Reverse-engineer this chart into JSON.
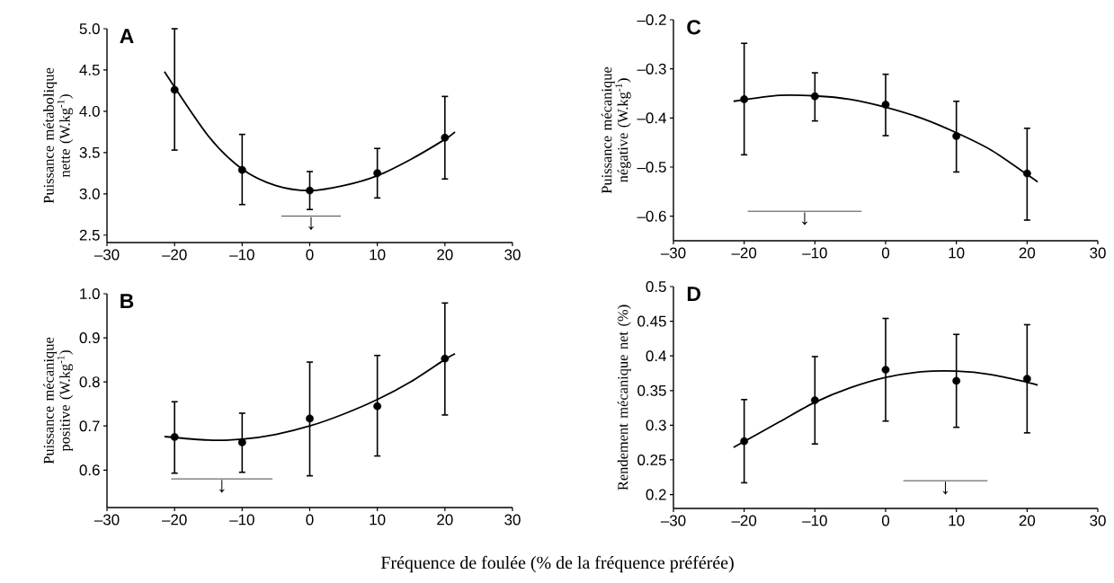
{
  "chart_data": [
    {
      "type": "scatter",
      "title": "A",
      "ylabel": "Puissance métabolique nette (W.kg$^{-1}$)",
      "xlim": [
        -30,
        30
      ],
      "ylim": [
        2.41,
        5.0
      ],
      "xticks": [
        {
          "value": -30,
          "label": "–30"
        },
        {
          "value": -20,
          "label": "–20"
        },
        {
          "value": -10,
          "label": "–10"
        },
        0,
        10,
        20,
        30
      ],
      "yticks": [
        2.5,
        {
          "value": 3,
          "label": "3.0"
        },
        3.5,
        {
          "value": 4,
          "label": "4.0"
        },
        4.5,
        {
          "value": 5,
          "label": "5.0"
        }
      ],
      "series": [
        {
          "type": "scatter",
          "marker": "circle",
          "color": "#000000",
          "x": [
            -20,
            -10,
            0,
            10,
            20
          ],
          "values": [
            4.26,
            3.29,
            3.04,
            3.25,
            3.68
          ],
          "errors": [
            [
              3.53,
              5.0
            ],
            [
              2.87,
              3.72
            ],
            [
              2.81,
              3.27
            ],
            [
              2.95,
              3.55
            ],
            [
              3.18,
              4.18
            ]
          ]
        },
        {
          "type": "line",
          "color": "#000000",
          "x": [
            -21.5,
            -15,
            -10,
            -5,
            0,
            5,
            10,
            15,
            20,
            21.5
          ],
          "values": [
            4.48,
            3.7,
            3.3,
            3.1,
            3.04,
            3.1,
            3.22,
            3.42,
            3.66,
            3.75
          ]
        },
        {
          "type": "line",
          "color": "#333333",
          "x": [
            -4.2,
            4.6
          ],
          "values": [
            2.73,
            2.73
          ]
        }
      ],
      "annotations": [
        "↓"
      ]
    },
    {
      "type": "scatter",
      "title": "C",
      "ylabel": "Puissance mécanique négative (W.kg$^{-1}$)",
      "xlim": [
        -30,
        30
      ],
      "ylim": [
        -0.65,
        -0.2
      ],
      "xticks": [
        {
          "value": -30,
          "label": "–30"
        },
        {
          "value": -20,
          "label": "–20"
        },
        {
          "value": -10,
          "label": "–10"
        },
        0,
        10,
        20,
        30
      ],
      "yticks": [
        {
          "value": -0.6,
          "label": "–0.6"
        },
        {
          "value": -0.5,
          "label": "–0.5"
        },
        {
          "value": -0.4,
          "label": "–0.4"
        },
        {
          "value": -0.3,
          "label": "–0.3"
        },
        {
          "value": -0.2,
          "label": "–0.2"
        }
      ],
      "series": [
        {
          "type": "scatter",
          "marker": "circle",
          "color": "#000000",
          "x": [
            -20,
            -10,
            0,
            10,
            20
          ],
          "values": [
            -0.362,
            -0.356,
            -0.373,
            -0.437,
            -0.513
          ],
          "errors": [
            [
              -0.475,
              -0.248
            ],
            [
              -0.406,
              -0.308
            ],
            [
              -0.436,
              -0.311
            ],
            [
              -0.51,
              -0.366
            ],
            [
              -0.608,
              -0.421
            ]
          ]
        },
        {
          "type": "line",
          "color": "#000000",
          "x": [
            -21.5,
            -15,
            -10,
            -5,
            0,
            5,
            10,
            15,
            20,
            21.5
          ],
          "values": [
            -0.366,
            -0.354,
            -0.355,
            -0.362,
            -0.378,
            -0.4,
            -0.43,
            -0.466,
            -0.515,
            -0.53
          ]
        },
        {
          "type": "line",
          "color": "#333333",
          "x": [
            -19.5,
            -3.4
          ],
          "values": [
            -0.59,
            -0.59
          ]
        }
      ],
      "annotations": [
        "↓"
      ]
    },
    {
      "type": "scatter",
      "title": "B",
      "ylabel": "Puissance mécanique positive (W.kg$^{-1}$)",
      "xlim": [
        -30,
        30
      ],
      "ylim": [
        0.515,
        1.0
      ],
      "xticks": [
        {
          "value": -30,
          "label": "–30"
        },
        {
          "value": -20,
          "label": "–20"
        },
        {
          "value": -10,
          "label": "–10"
        },
        0,
        10,
        20,
        30
      ],
      "yticks": [
        0.6,
        0.7,
        0.8,
        0.9,
        {
          "value": 1,
          "label": "1.0"
        }
      ],
      "series": [
        {
          "type": "scatter",
          "marker": "circle",
          "color": "#000000",
          "x": [
            -20,
            -10,
            0,
            10,
            20
          ],
          "values": [
            0.675,
            0.663,
            0.717,
            0.745,
            0.853
          ],
          "errors": [
            [
              0.593,
              0.755
            ],
            [
              0.595,
              0.729
            ],
            [
              0.587,
              0.845
            ],
            [
              0.632,
              0.86
            ],
            [
              0.725,
              0.979
            ]
          ]
        },
        {
          "type": "line",
          "color": "#000000",
          "x": [
            -21.5,
            -15,
            -10,
            -5,
            0,
            5,
            10,
            15,
            20,
            21.5
          ],
          "values": [
            0.676,
            0.668,
            0.67,
            0.681,
            0.7,
            0.727,
            0.76,
            0.801,
            0.851,
            0.864
          ]
        },
        {
          "type": "line",
          "color": "#333333",
          "x": [
            -20.5,
            -5.5
          ],
          "values": [
            0.58,
            0.58
          ]
        }
      ],
      "annotations": [
        "↓"
      ]
    },
    {
      "type": "scatter",
      "title": "D",
      "ylabel": "Rendement mécanique net (%)",
      "xlabel": "Fréquence de foulée (% de la fréquence préférée)",
      "xlim": [
        -30,
        30
      ],
      "ylim": [
        0.18,
        0.5
      ],
      "xticks": [
        {
          "value": -30,
          "label": "–30"
        },
        {
          "value": -20,
          "label": "–20"
        },
        {
          "value": -10,
          "label": "–10"
        },
        0,
        10,
        20,
        30
      ],
      "yticks": [
        0.2,
        0.25,
        0.3,
        0.35,
        0.4,
        0.45,
        0.5
      ],
      "series": [
        {
          "type": "scatter",
          "marker": "circle",
          "color": "#000000",
          "x": [
            -20,
            -10,
            0,
            10,
            20
          ],
          "values": [
            0.277,
            0.336,
            0.38,
            0.364,
            0.367
          ],
          "errors": [
            [
              0.217,
              0.337
            ],
            [
              0.273,
              0.399
            ],
            [
              0.306,
              0.454
            ],
            [
              0.297,
              0.431
            ],
            [
              0.289,
              0.445
            ]
          ]
        },
        {
          "type": "line",
          "color": "#000000",
          "x": [
            -21.5,
            -15,
            -10,
            -5,
            0,
            5,
            10,
            15,
            20,
            21.5
          ],
          "values": [
            0.268,
            0.305,
            0.333,
            0.354,
            0.369,
            0.377,
            0.378,
            0.373,
            0.362,
            0.358
          ]
        },
        {
          "type": "line",
          "color": "#333333",
          "x": [
            2.5,
            14.4
          ],
          "values": [
            0.22,
            0.22
          ]
        }
      ],
      "annotations": [
        "↓"
      ]
    }
  ]
}
